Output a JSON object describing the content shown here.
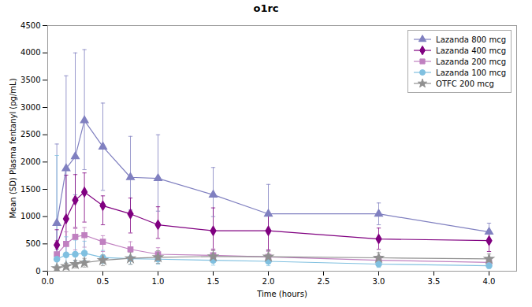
{
  "chart_data": {
    "type": "line",
    "title": "o1rc",
    "xlabel": "Time (hours)",
    "ylabel": "Mean (SD) Plasma fentanyl (pg/mL)",
    "xlim": [
      0,
      4.25
    ],
    "ylim": [
      0,
      4500
    ],
    "xticks": [
      {
        "value": 0,
        "label": "0.0"
      },
      0.5,
      {
        "value": 1.0,
        "label": "1.0"
      },
      1.5,
      {
        "value": 2.0,
        "label": "2.0"
      },
      2.5,
      {
        "value": 3.0,
        "label": "3.0"
      },
      3.5,
      {
        "value": 4.0,
        "label": "4.0"
      }
    ],
    "yticks": [
      0,
      500,
      1000,
      1500,
      2000,
      2500,
      3000,
      3500,
      4000,
      4500
    ],
    "grid": false,
    "legend": "upper right",
    "x": [
      0.083,
      0.167,
      0.25,
      0.333,
      0.5,
      0.75,
      1.0,
      1.5,
      2.0,
      3.0,
      4.0
    ],
    "series": [
      {
        "name": "Lazanda 800 mcg",
        "color": "#8080C0",
        "marker": "triangle",
        "line_style": "solid",
        "values": [
          880,
          1880,
          2100,
          2760,
          2280,
          1720,
          1700,
          1400,
          1050,
          1050,
          720
        ],
        "yerr_lo": [
          480,
          880,
          700,
          900,
          800,
          600,
          600,
          400,
          350,
          200,
          200
        ],
        "yerr_hi": [
          1450,
          1700,
          1900,
          1300,
          800,
          750,
          800,
          500,
          540,
          200,
          160
        ]
      },
      {
        "name": "Lazanda 400 mcg",
        "color": "#800080",
        "marker": "diamond",
        "line_style": "solid",
        "values": [
          480,
          960,
          1300,
          1450,
          1200,
          1050,
          850,
          740,
          740,
          590,
          560
        ],
        "yerr_lo": [
          200,
          480,
          500,
          550,
          350,
          350,
          250,
          350,
          350,
          190,
          200
        ],
        "yerr_hi": [
          280,
          800,
          470,
          350,
          180,
          290,
          330,
          420,
          330,
          200,
          170
        ]
      },
      {
        "name": "Lazanda 200 mcg",
        "color": "#C080C0",
        "marker": "square",
        "line_style": "solid",
        "values": [
          310,
          500,
          630,
          660,
          540,
          400,
          310,
          290,
          260,
          200,
          160
        ],
        "yerr_lo": [
          120,
          220,
          240,
          220,
          180,
          160,
          120,
          130,
          110,
          90,
          80
        ],
        "yerr_hi": [
          250,
          220,
          150,
          140,
          110,
          140,
          120,
          120,
          100,
          80,
          70
        ]
      },
      {
        "name": "Lazanda 100 mcg",
        "color": "#80C0E0",
        "marker": "circle",
        "line_style": "solid",
        "values": [
          220,
          300,
          310,
          330,
          250,
          230,
          220,
          200,
          180,
          130,
          100
        ],
        "yerr_lo": [
          110,
          150,
          120,
          130,
          110,
          100,
          90,
          90,
          80,
          60,
          50
        ],
        "yerr_hi": [
          1900,
          330,
          260,
          220,
          130,
          130,
          100,
          100,
          80,
          50,
          50
        ]
      },
      {
        "name": "OTFC 200 mcg",
        "color": "#909090",
        "marker": "star",
        "line_style": "solid",
        "values": [
          55,
          90,
          130,
          155,
          200,
          235,
          255,
          270,
          265,
          245,
          225
        ],
        "yerr_lo": [
          40,
          55,
          70,
          80,
          100,
          110,
          110,
          115,
          110,
          105,
          95
        ],
        "yerr_hi": [
          40,
          55,
          70,
          80,
          100,
          110,
          120,
          110,
          110,
          95,
          90
        ]
      }
    ]
  }
}
